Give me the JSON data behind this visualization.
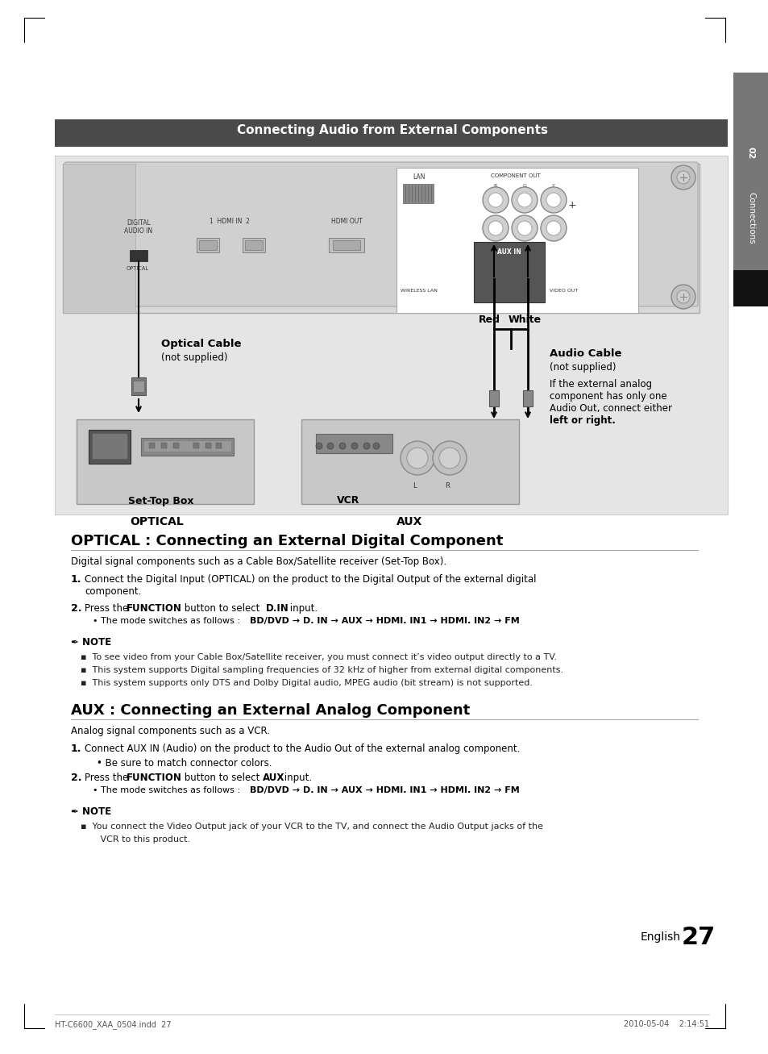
{
  "page_bg": "#ffffff",
  "header_bar_color": "#4a4a4a",
  "header_text": "Connecting Audio from External Components",
  "header_text_color": "#ffffff",
  "section1_title": "OPTICAL : Connecting an External Digital Component",
  "section2_title": "AUX : Connecting an External Analog Component",
  "section1_intro": "Digital signal components such as a Cable Box/Satellite receiver (Set-Top Box).",
  "section2_intro": "Analog signal components such as a VCR.",
  "optical_label": "OPTICAL",
  "aux_label": "AUX",
  "optical_cable_label": "Optical Cable",
  "optical_cable_sub": "(not supplied)",
  "audio_cable_label": "Audio Cable",
  "audio_cable_sub": "(not supplied)",
  "audio_cable_desc1": "If the external analog",
  "audio_cable_desc2": "component has only one",
  "audio_cable_desc3": "Audio Out, connect either",
  "audio_cable_desc4": "left or right.",
  "red_label": "Red",
  "white_label": "White",
  "set_top_box_label": "Set-Top Box",
  "vcr_label": "VCR",
  "tab_num": "02",
  "tab_text": "Connections",
  "s1_step1a": "Connect the Digital Input (OPTICAL) on the product to the Digital Output of the external digital",
  "s1_step1b": "component.",
  "s1_bullet_bold": "BD/DVD → D. IN → AUX → HDMI. IN1 → HDMI. IN2 → FM",
  "note1_b1": "To see video from your Cable Box/Satellite receiver, you must connect it’s video output directly to a TV.",
  "note1_b2": "This system supports Digital sampling frequencies of 32 kHz of higher from external digital components.",
  "note1_b3": "This system supports only DTS and Dolby Digital audio, MPEG audio (bit stream) is not supported.",
  "s2_step1_plain": "Connect AUX IN (Audio) on the product to the Audio Out of the external analog component.",
  "s2_step1_bullet": "Be sure to match connector colors.",
  "s2_bullet_bold": "BD/DVD → D. IN → AUX → HDMI. IN1 → HDMI. IN2 → FM",
  "note2_bullet1": "You connect the Video Output jack of your VCR to the TV, and connect the Audio Output jacks of the",
  "note2_bullet2": "VCR to this product.",
  "page_num": "27",
  "english_label": "English",
  "footer_left": "HT-C6600_XAA_0504.indd  27",
  "footer_right": "2010-05-04    2:14:51"
}
